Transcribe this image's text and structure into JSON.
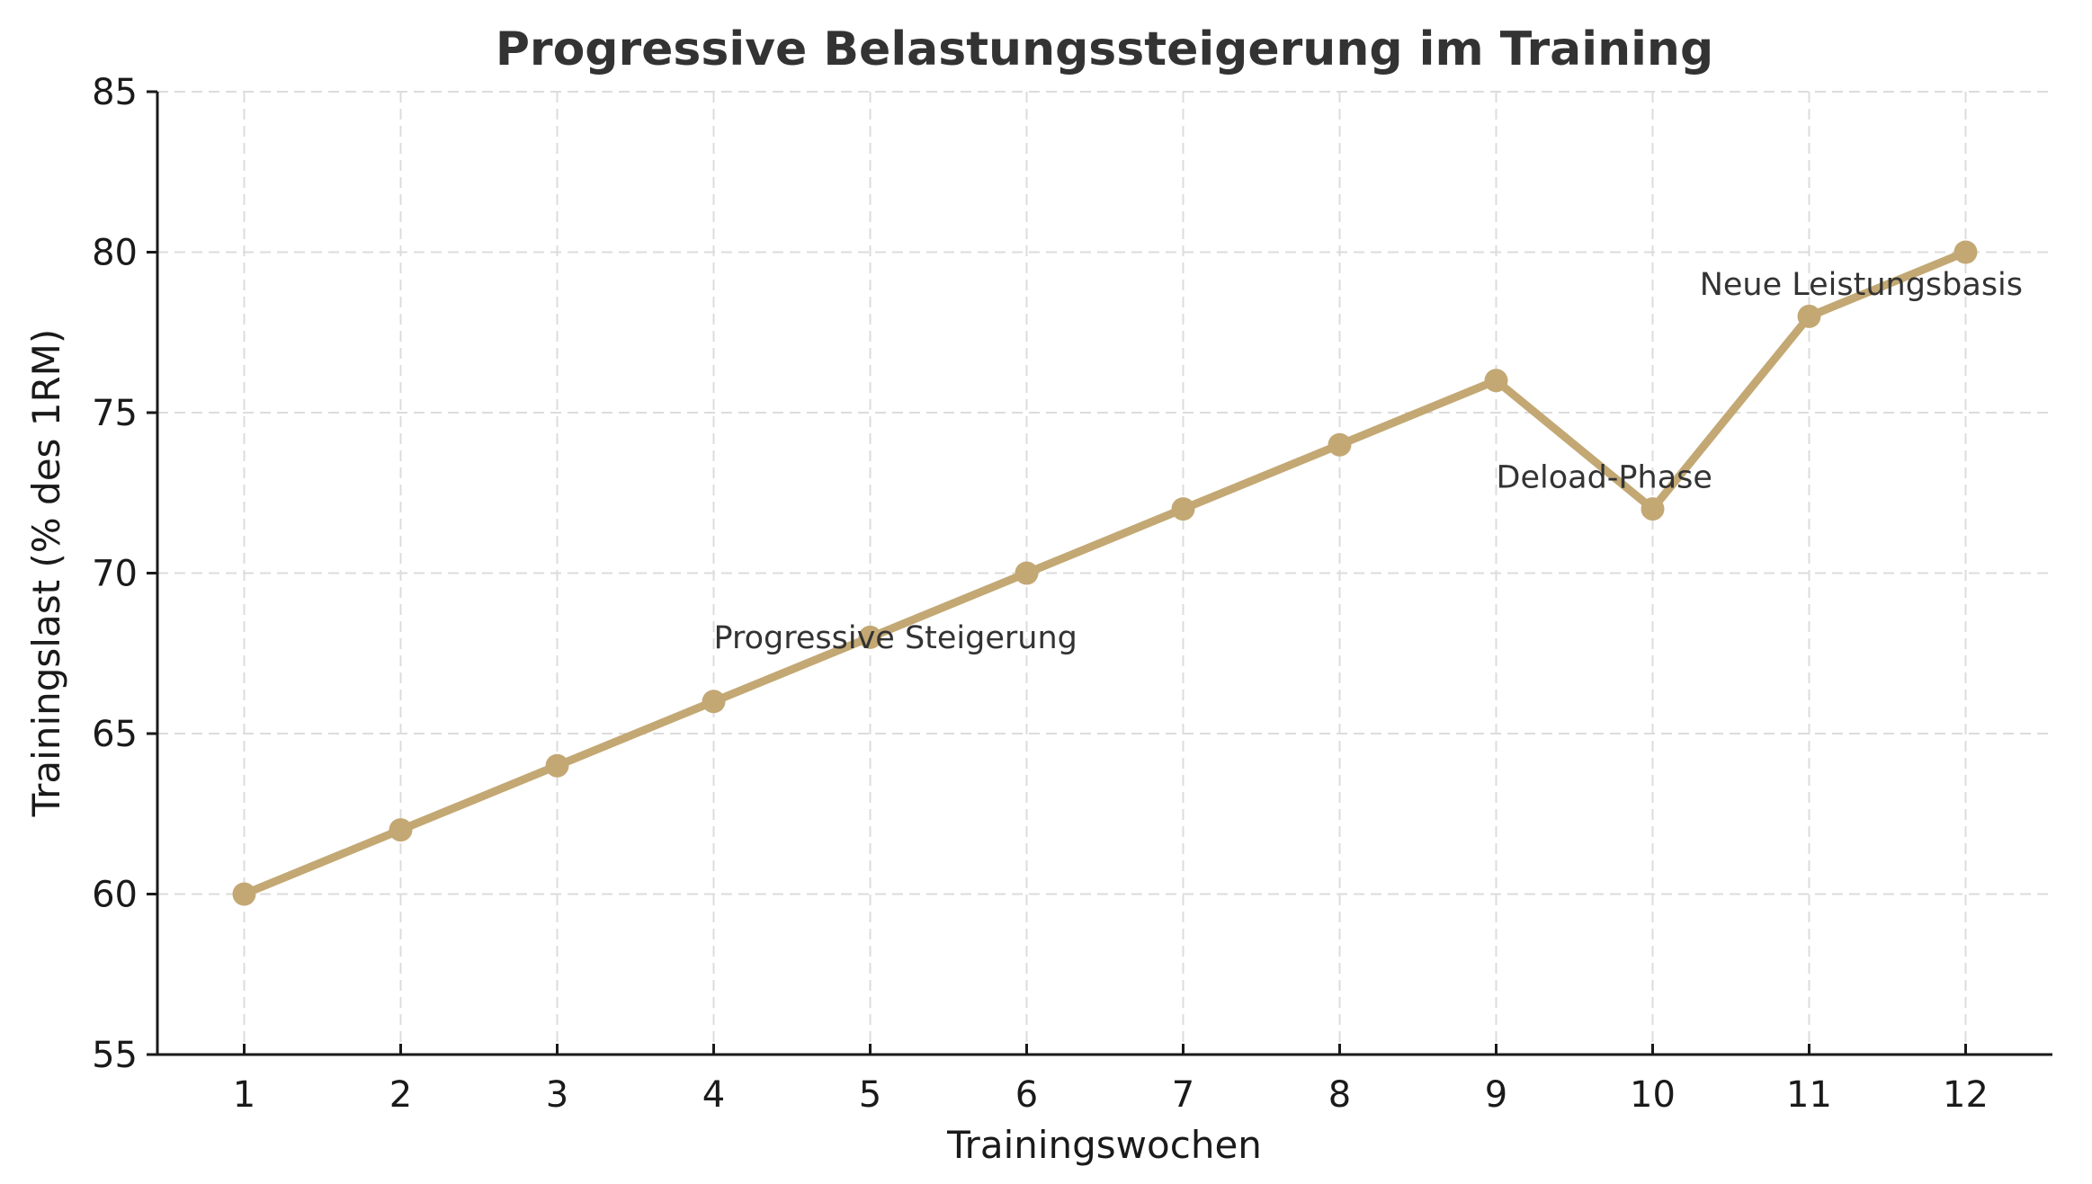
{
  "chart_data": {
    "type": "line",
    "title": "Progressive Belastungssteigerung im Training",
    "xlabel": "Trainingswochen",
    "ylabel": "Trainingslast (% des 1RM)",
    "x": [
      1,
      2,
      3,
      4,
      5,
      6,
      7,
      8,
      9,
      10,
      11,
      12
    ],
    "series": [
      {
        "name": "Trainingslast",
        "values": [
          60,
          62,
          64,
          66,
          68,
          70,
          72,
          74,
          76,
          72,
          78,
          80
        ],
        "color": "#C3A874"
      }
    ],
    "xlim": [
      0.45,
      12.55
    ],
    "ylim": [
      55,
      85
    ],
    "xticks": [
      "1",
      "2",
      "3",
      "4",
      "5",
      "6",
      "7",
      "8",
      "9",
      "10",
      "11",
      "12"
    ],
    "yticks": [
      "55",
      "60",
      "65",
      "70",
      "75",
      "80",
      "85"
    ],
    "grid": true,
    "legend": null,
    "annotations": [
      {
        "text": "Progressive Steigerung",
        "x": 4,
        "y": 68
      },
      {
        "text": "Deload-Phase",
        "x": 9,
        "y": 73
      },
      {
        "text": "Neue Leistungsbasis",
        "x": 10.3,
        "y": 79
      }
    ]
  }
}
